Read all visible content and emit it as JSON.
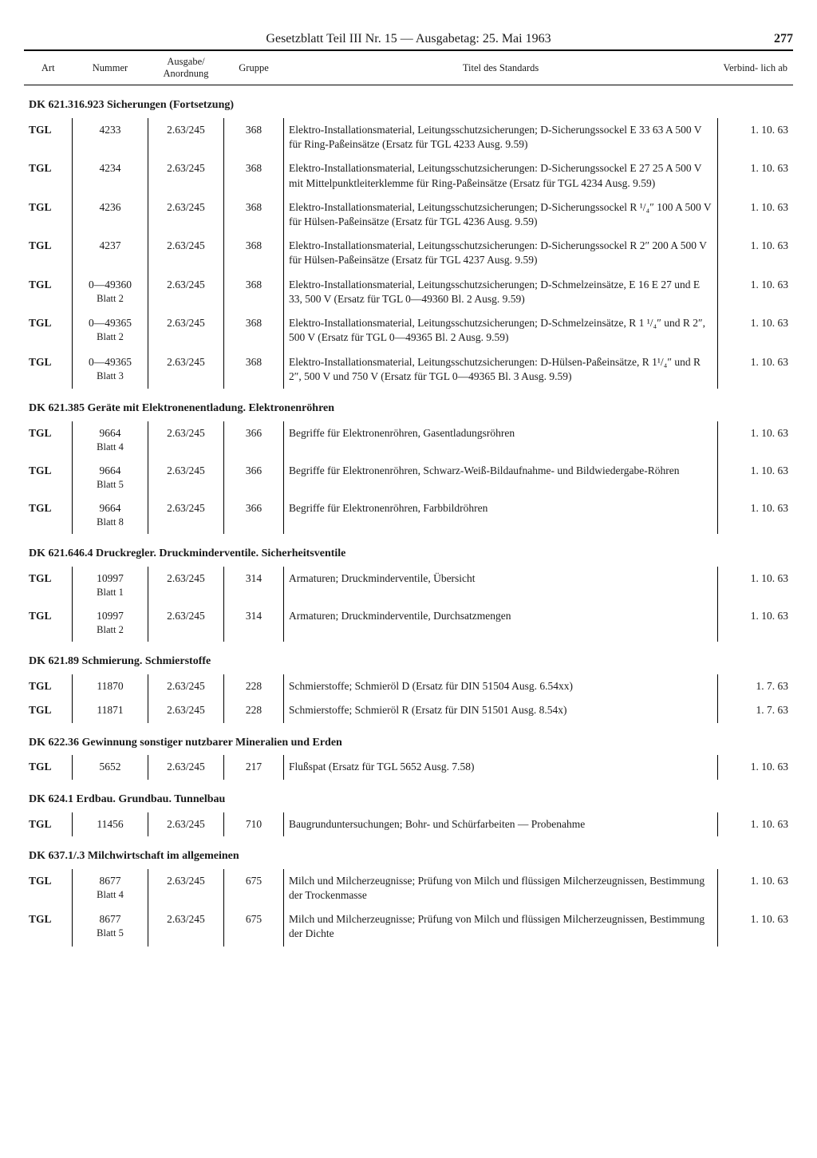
{
  "header": {
    "title": "Gesetzblatt Teil III Nr. 15 — Ausgabetag: 25. Mai 1963",
    "page": "277"
  },
  "columns": {
    "art": "Art",
    "nummer": "Nummer",
    "ausgabe": "Ausgabe/ Anordnung",
    "gruppe": "Gruppe",
    "titel": "Titel des Standards",
    "verbindlich": "Verbind- lich ab"
  },
  "sections": [
    {
      "heading": "DK 621.316.923 Sicherungen (Fortsetzung)",
      "rows": [
        {
          "art": "TGL",
          "nummer": "4233",
          "ausgabe": "2.63/245",
          "gruppe": "368",
          "titel": "Elektro-Installationsmaterial, Leitungsschutzsicherungen; D-Sicherungssockel E 33 63 A 500 V für Ring-Paßeinsätze (Ersatz für TGL 4233 Ausg. 9.59)",
          "date": "1. 10. 63"
        },
        {
          "art": "TGL",
          "nummer": "4234",
          "ausgabe": "2.63/245",
          "gruppe": "368",
          "titel": "Elektro-Installationsmaterial, Leitungsschutzsicherungen: D-Sicherungssockel E 27 25 A 500 V mit Mittelpunktleiterklemme für Ring-Paßeinsätze (Ersatz für TGL 4234 Ausg. 9.59)",
          "date": "1. 10. 63"
        },
        {
          "art": "TGL",
          "nummer": "4236",
          "ausgabe": "2.63/245",
          "gruppe": "368",
          "titel": "Elektro-Installationsmaterial, Leitungsschutzsicherungen; D-Sicherungssockel R ¹/₄″ 100 A 500 V für Hülsen-Paßeinsätze (Ersatz für TGL 4236 Ausg. 9.59)",
          "date": "1. 10. 63"
        },
        {
          "art": "TGL",
          "nummer": "4237",
          "ausgabe": "2.63/245",
          "gruppe": "368",
          "titel": "Elektro-Installationsmaterial, Leitungsschutzsicherungen: D-Sicherungssockel R 2″ 200 A 500 V für Hülsen-Paßeinsätze (Ersatz für TGL 4237 Ausg. 9.59)",
          "date": "1. 10. 63"
        },
        {
          "art": "TGL",
          "nummer": "0—49360",
          "nummer_sub": "Blatt 2",
          "ausgabe": "2.63/245",
          "gruppe": "368",
          "titel": "Elektro-Installationsmaterial, Leitungsschutzsicherungen; D-Schmelzeinsätze, E 16 E 27 und E 33, 500 V (Ersatz für TGL 0—49360 Bl. 2 Ausg. 9.59)",
          "date": "1. 10. 63"
        },
        {
          "art": "TGL",
          "nummer": "0—49365",
          "nummer_sub": "Blatt 2",
          "ausgabe": "2.63/245",
          "gruppe": "368",
          "titel": "Elektro-Installationsmaterial, Leitungsschutzsicherungen; D-Schmelzeinsätze, R 1 ¹/₄″ und R 2″, 500 V (Ersatz für TGL 0—49365 Bl. 2 Ausg. 9.59)",
          "date": "1. 10. 63"
        },
        {
          "art": "TGL",
          "nummer": "0—49365",
          "nummer_sub": "Blatt 3",
          "ausgabe": "2.63/245",
          "gruppe": "368",
          "titel": "Elektro-Installationsmaterial, Leitungsschutzsicherungen: D-Hülsen-Paßeinsätze, R 1¹/₄″ und R 2″, 500 V und 750 V (Ersatz für TGL 0—49365 Bl. 3 Ausg. 9.59)",
          "date": "1. 10. 63"
        }
      ]
    },
    {
      "heading": "DK 621.385 Geräte mit Elektronenentladung. Elektronenröhren",
      "rows": [
        {
          "art": "TGL",
          "nummer": "9664",
          "nummer_sub": "Blatt 4",
          "ausgabe": "2.63/245",
          "gruppe": "366",
          "titel": "Begriffe für Elektronenröhren, Gasentladungsröhren",
          "date": "1. 10. 63"
        },
        {
          "art": "TGL",
          "nummer": "9664",
          "nummer_sub": "Blatt 5",
          "ausgabe": "2.63/245",
          "gruppe": "366",
          "titel": "Begriffe für Elektronenröhren, Schwarz-Weiß-Bildaufnahme- und Bildwiedergabe-Röhren",
          "date": "1. 10. 63"
        },
        {
          "art": "TGL",
          "nummer": "9664",
          "nummer_sub": "Blatt 8",
          "ausgabe": "2.63/245",
          "gruppe": "366",
          "titel": "Begriffe für Elektronenröhren, Farbbildröhren",
          "date": "1. 10. 63"
        }
      ]
    },
    {
      "heading": "DK 621.646.4 Druckregler. Druckminderventile. Sicherheitsventile",
      "rows": [
        {
          "art": "TGL",
          "nummer": "10997",
          "nummer_sub": "Blatt 1",
          "ausgabe": "2.63/245",
          "gruppe": "314",
          "titel": "Armaturen; Druckminderventile, Übersicht",
          "date": "1. 10. 63"
        },
        {
          "art": "TGL",
          "nummer": "10997",
          "nummer_sub": "Blatt 2",
          "ausgabe": "2.63/245",
          "gruppe": "314",
          "titel": "Armaturen; Druckminderventile, Durchsatzmengen",
          "date": "1. 10. 63"
        }
      ]
    },
    {
      "heading": "DK 621.89 Schmierung. Schmierstoffe",
      "rows": [
        {
          "art": "TGL",
          "nummer": "11870",
          "ausgabe": "2.63/245",
          "gruppe": "228",
          "titel": "Schmierstoffe; Schmieröl D (Ersatz für DIN 51504 Ausg. 6.54xx)",
          "date": "1.  7. 63"
        },
        {
          "art": "TGL",
          "nummer": "11871",
          "ausgabe": "2.63/245",
          "gruppe": "228",
          "titel": "Schmierstoffe; Schmieröl R (Ersatz für DIN 51501 Ausg. 8.54x)",
          "date": "1.  7. 63"
        }
      ]
    },
    {
      "heading": "DK 622.36 Gewinnung sonstiger nutzbarer Mineralien und Erden",
      "rows": [
        {
          "art": "TGL",
          "nummer": "5652",
          "ausgabe": "2.63/245",
          "gruppe": "217",
          "titel": "Flußspat (Ersatz für TGL 5652 Ausg. 7.58)",
          "date": "1. 10. 63"
        }
      ]
    },
    {
      "heading": "DK 624.1 Erdbau. Grundbau. Tunnelbau",
      "rows": [
        {
          "art": "TGL",
          "nummer": "11456",
          "ausgabe": "2.63/245",
          "gruppe": "710",
          "titel": "Baugrunduntersuchungen; Bohr- und Schürfarbeiten — Probenahme",
          "date": "1. 10. 63"
        }
      ]
    },
    {
      "heading": "DK 637.1/.3 Milchwirtschaft im allgemeinen",
      "rows": [
        {
          "art": "TGL",
          "nummer": "8677",
          "nummer_sub": "Blatt 4",
          "ausgabe": "2.63/245",
          "gruppe": "675",
          "titel": "Milch und Milcherzeugnisse; Prüfung von Milch und flüssigen Milcherzeugnissen, Bestimmung der Trockenmasse",
          "date": "1. 10. 63"
        },
        {
          "art": "TGL",
          "nummer": "8677",
          "nummer_sub": "Blatt 5",
          "ausgabe": "2.63/245",
          "gruppe": "675",
          "titel": "Milch und Milcherzeugnisse; Prüfung von Milch und flüssigen Milcherzeugnissen, Bestimmung der Dichte",
          "date": "1. 10. 63"
        }
      ]
    }
  ]
}
